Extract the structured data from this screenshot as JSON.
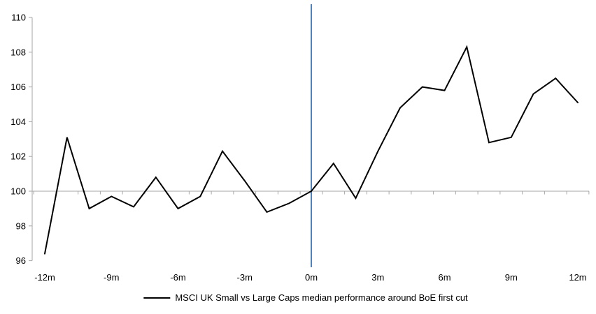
{
  "chart_data": {
    "type": "line",
    "title": "",
    "xlabel": "",
    "ylabel": "",
    "x": [
      -12,
      -11,
      -10,
      -9,
      -8,
      -7,
      -6,
      -5,
      -4,
      -3,
      -2,
      -1,
      0,
      1,
      2,
      3,
      4,
      5,
      6,
      7,
      8,
      9,
      10,
      11,
      12
    ],
    "series": [
      {
        "name": "MSCI UK Small vs Large Caps median performance around BoE first cut",
        "values": [
          96.4,
          103.1,
          99.0,
          99.7,
          99.1,
          100.8,
          99.0,
          99.7,
          102.3,
          100.6,
          98.8,
          99.3,
          100.0,
          101.6,
          99.6,
          102.3,
          104.8,
          106.0,
          105.8,
          108.3,
          102.8,
          103.1,
          105.6,
          106.5,
          105.1
        ]
      }
    ],
    "x_tick_months": [
      -12,
      -9,
      -6,
      -3,
      0,
      3,
      6,
      9,
      12
    ],
    "x_tick_labels": [
      "-12m",
      "-9m",
      "-6m",
      "-3m",
      "0m",
      "3m",
      "6m",
      "9m",
      "12m"
    ],
    "y_ticks": [
      96,
      98,
      100,
      102,
      104,
      106,
      108,
      110
    ],
    "y_tick_labels": [
      "96",
      "98",
      "100",
      "102",
      "104",
      "106",
      "108",
      "110"
    ],
    "ylim": [
      96,
      110
    ],
    "xlim": [
      -12.5,
      12.5
    ],
    "axis_crosses_at": 100,
    "event_line_x": 0,
    "grid": "off",
    "legend_position": "bottom",
    "colors": {
      "series_line": "#000000",
      "event_line": "#4F81BD",
      "axis": "#A6A6A6",
      "text": "#000000",
      "background": "#FFFFFF"
    }
  },
  "legend": {
    "items": [
      {
        "swatch": "black-line",
        "label": "MSCI UK Small vs Large Caps median performance around BoE first cut"
      }
    ]
  }
}
